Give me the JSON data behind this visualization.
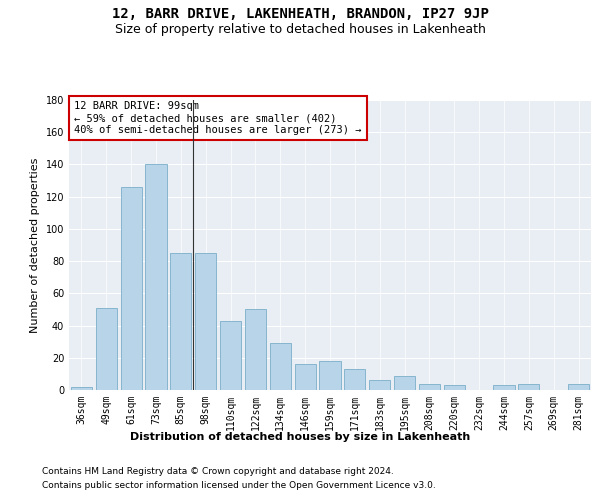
{
  "title1": "12, BARR DRIVE, LAKENHEATH, BRANDON, IP27 9JP",
  "title2": "Size of property relative to detached houses in Lakenheath",
  "xlabel": "Distribution of detached houses by size in Lakenheath",
  "ylabel": "Number of detached properties",
  "categories": [
    "36sqm",
    "49sqm",
    "61sqm",
    "73sqm",
    "85sqm",
    "98sqm",
    "110sqm",
    "122sqm",
    "134sqm",
    "146sqm",
    "159sqm",
    "171sqm",
    "183sqm",
    "195sqm",
    "208sqm",
    "220sqm",
    "232sqm",
    "244sqm",
    "257sqm",
    "269sqm",
    "281sqm"
  ],
  "values": [
    2,
    51,
    126,
    140,
    85,
    85,
    43,
    50,
    29,
    16,
    18,
    13,
    6,
    9,
    4,
    3,
    0,
    3,
    4,
    0,
    4
  ],
  "bar_color": "#b8d4e8",
  "bar_edge_color": "#7aaec8",
  "annotation_text": "12 BARR DRIVE: 99sqm\n← 59% of detached houses are smaller (402)\n40% of semi-detached houses are larger (273) →",
  "annotation_box_facecolor": "#ffffff",
  "annotation_box_edgecolor": "#cc0000",
  "vline_x": 5,
  "vline_color": "#333333",
  "ylim": [
    0,
    180
  ],
  "yticks": [
    0,
    20,
    40,
    60,
    80,
    100,
    120,
    140,
    160,
    180
  ],
  "footer1": "Contains HM Land Registry data © Crown copyright and database right 2024.",
  "footer2": "Contains public sector information licensed under the Open Government Licence v3.0.",
  "bg_color": "#ffffff",
  "plot_bg_color": "#e8eef4",
  "grid_color": "#ffffff",
  "title1_fontsize": 10,
  "title2_fontsize": 9,
  "ylabel_fontsize": 8,
  "xlabel_fontsize": 8,
  "tick_fontsize": 7,
  "annotation_fontsize": 7.5,
  "footer_fontsize": 6.5
}
